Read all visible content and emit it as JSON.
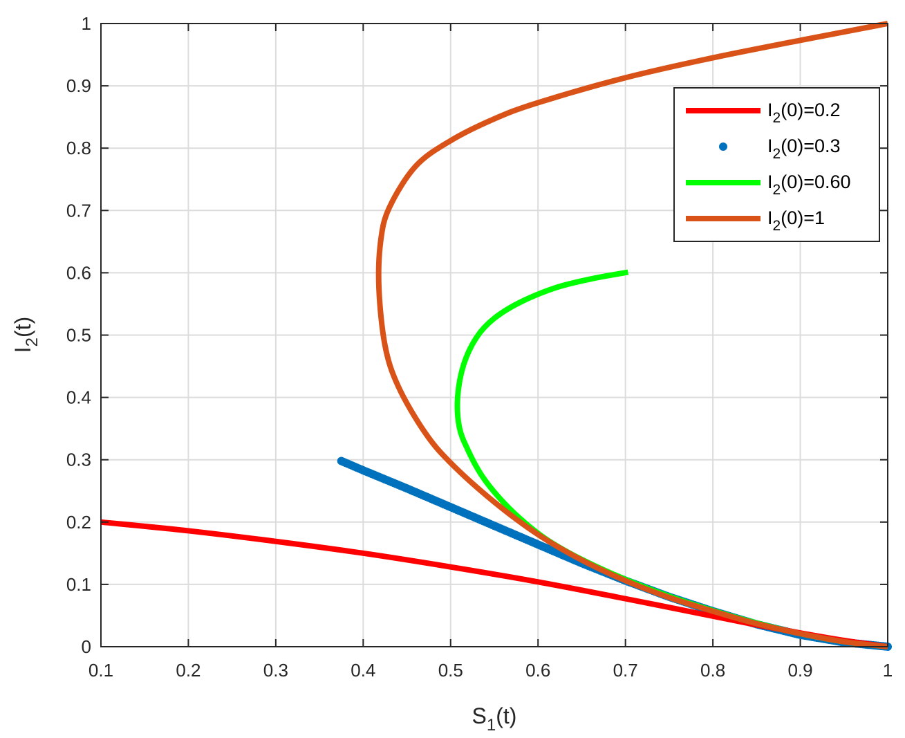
{
  "chart_data": {
    "type": "line",
    "title": "",
    "xlabel": {
      "main": "S",
      "sub": "1",
      "rest": "(t)"
    },
    "ylabel": {
      "main": "I",
      "sub": "2",
      "rest": "(t)"
    },
    "xlim": [
      0.1,
      1
    ],
    "ylim": [
      0,
      1
    ],
    "xticks": [
      0.1,
      0.2,
      0.3,
      0.4,
      0.5,
      0.6,
      0.7,
      0.8,
      0.9,
      1
    ],
    "xtick_labels": [
      "0.1",
      "0.2",
      "0.3",
      "0.4",
      "0.5",
      "0.6",
      "0.7",
      "0.8",
      "0.9",
      "1"
    ],
    "yticks": [
      0,
      0.1,
      0.2,
      0.3,
      0.4,
      0.5,
      0.6,
      0.7,
      0.8,
      0.9,
      1
    ],
    "ytick_labels": [
      "0",
      "0.1",
      "0.2",
      "0.3",
      "0.4",
      "0.5",
      "0.6",
      "0.7",
      "0.8",
      "0.9",
      "1"
    ],
    "grid": true,
    "legend_position": "top-right",
    "series": [
      {
        "name": {
          "main": "I",
          "sub": "2",
          "rest": "(0)=0.2"
        },
        "style": "line",
        "color": "#ff0000",
        "x": [
          0.1,
          0.2,
          0.3,
          0.4,
          0.5,
          0.6,
          0.7,
          0.8,
          0.85,
          0.9,
          0.95,
          1.0
        ],
        "y": [
          0.2,
          0.186,
          0.169,
          0.15,
          0.128,
          0.104,
          0.077,
          0.049,
          0.035,
          0.022,
          0.01,
          0.0
        ]
      },
      {
        "name": {
          "main": "I",
          "sub": "2",
          "rest": "(0)=0.3"
        },
        "style": "markers",
        "color": "#0072bd",
        "x": [
          0.375,
          0.4,
          0.45,
          0.5,
          0.55,
          0.6,
          0.65,
          0.7,
          0.75,
          0.8,
          0.85,
          0.9,
          0.95,
          1.0
        ],
        "y": [
          0.298,
          0.283,
          0.254,
          0.224,
          0.194,
          0.164,
          0.134,
          0.106,
          0.08,
          0.057,
          0.036,
          0.019,
          0.007,
          0.0
        ]
      },
      {
        "name": {
          "main": "I",
          "sub": "2",
          "rest": "(0)=0.60"
        },
        "style": "line",
        "color": "#00ff00",
        "x": [
          0.703,
          0.66,
          0.62,
          0.58,
          0.55,
          0.53,
          0.515,
          0.508,
          0.51,
          0.52,
          0.535,
          0.555,
          0.58,
          0.61,
          0.65,
          0.7,
          0.75,
          0.8,
          0.85,
          0.9,
          0.95,
          1.0
        ],
        "y": [
          0.601,
          0.59,
          0.576,
          0.553,
          0.527,
          0.497,
          0.453,
          0.4,
          0.352,
          0.315,
          0.276,
          0.24,
          0.205,
          0.172,
          0.14,
          0.108,
          0.081,
          0.058,
          0.038,
          0.021,
          0.008,
          0.0
        ]
      },
      {
        "name": {
          "main": "I",
          "sub": "2",
          "rest": "(0)=1"
        },
        "style": "line",
        "color": "#d95319",
        "x": [
          1.0,
          0.9,
          0.8,
          0.7,
          0.6,
          0.55,
          0.5,
          0.46,
          0.43,
          0.42,
          0.418,
          0.425,
          0.44,
          0.47,
          0.5,
          0.55,
          0.6,
          0.65,
          0.7,
          0.75,
          0.8,
          0.85,
          0.9,
          0.95,
          1.0
        ],
        "y": [
          1.0,
          0.973,
          0.945,
          0.913,
          0.873,
          0.847,
          0.812,
          0.771,
          0.705,
          0.651,
          0.575,
          0.483,
          0.418,
          0.345,
          0.295,
          0.232,
          0.18,
          0.139,
          0.106,
          0.079,
          0.057,
          0.037,
          0.021,
          0.008,
          0.0
        ]
      }
    ]
  }
}
